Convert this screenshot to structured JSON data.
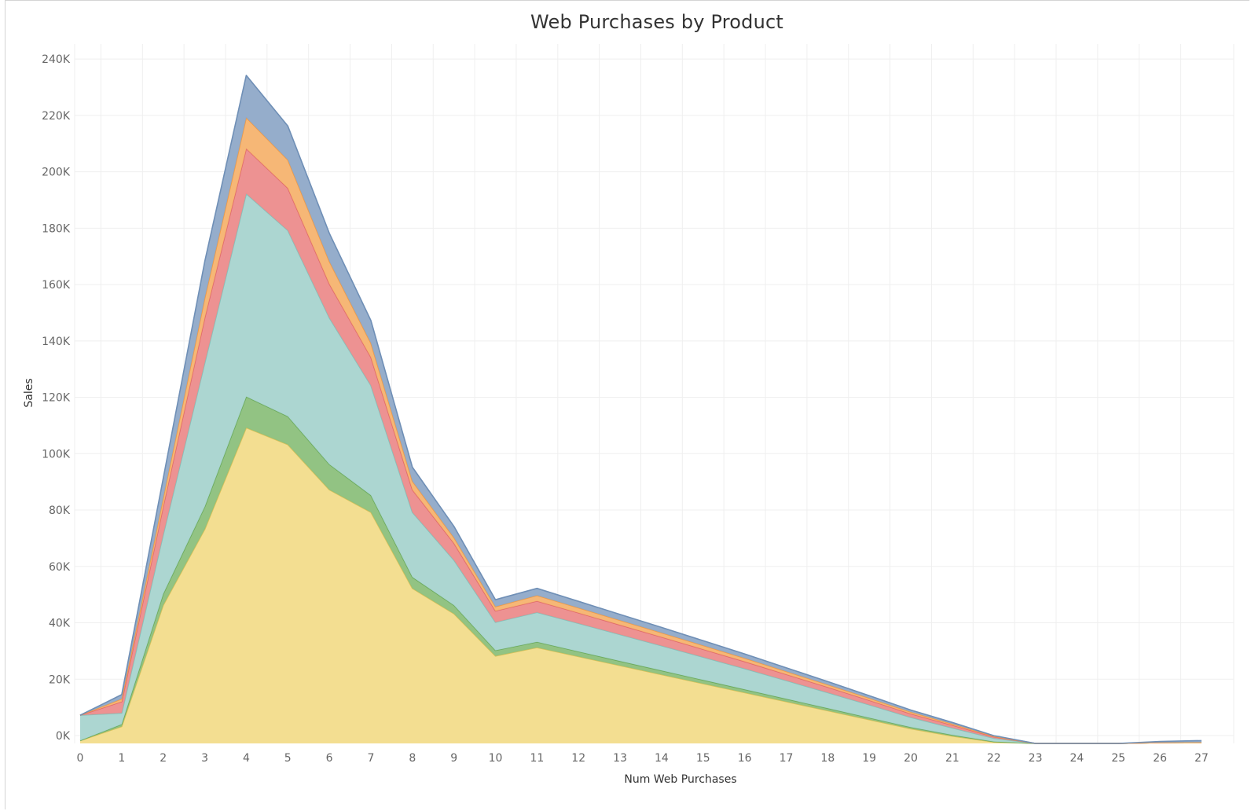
{
  "chart_data": {
    "type": "area",
    "stacked": true,
    "title": "Web Purchases by Product",
    "xlabel": "Num Web Purchases",
    "ylabel": "Sales",
    "x": [
      0,
      1,
      2,
      3,
      4,
      5,
      6,
      7,
      8,
      9,
      10,
      11,
      12,
      13,
      14,
      15,
      16,
      17,
      18,
      19,
      20,
      21,
      22,
      23,
      24,
      25,
      26,
      27
    ],
    "x_tick_labels": [
      "0",
      "1",
      "2",
      "3",
      "4",
      "5",
      "6",
      "7",
      "8",
      "9",
      "10",
      "11",
      "12",
      "13",
      "14",
      "15",
      "16",
      "17",
      "18",
      "19",
      "20",
      "21",
      "22",
      "23",
      "24",
      "25",
      "26",
      "27"
    ],
    "ylim": [
      0,
      245000
    ],
    "y_ticks": [
      0,
      20000,
      40000,
      60000,
      80000,
      100000,
      120000,
      140000,
      160000,
      180000,
      200000,
      220000,
      240000
    ],
    "y_tick_labels": [
      "0K",
      "20K",
      "40K",
      "60K",
      "80K",
      "100K",
      "120K",
      "140K",
      "160K",
      "180K",
      "200K",
      "220K",
      "240K"
    ],
    "grid": true,
    "series": [
      {
        "color": "#f2dc8b",
        "edge": "#d8c15a",
        "values": [
          1000,
          6000,
          49000,
          76000,
          112000,
          106000,
          90000,
          82000,
          55000,
          46000,
          31000,
          34000,
          30800,
          27600,
          24400,
          21200,
          18000,
          14800,
          11600,
          8400,
          5200,
          2600,
          500,
          0,
          0,
          0,
          300,
          400
        ]
      },
      {
        "color": "#8cc07c",
        "edge": "#6aa95a",
        "values": [
          0,
          800,
          4000,
          8000,
          11000,
          10000,
          9000,
          6000,
          4000,
          3000,
          2000,
          2000,
          1800,
          1600,
          1450,
          1300,
          1150,
          1000,
          850,
          700,
          550,
          400,
          150,
          0,
          0,
          0,
          0,
          0
        ]
      },
      {
        "color": "#a8d4cf",
        "edge": "#86bfb8",
        "values": [
          9000,
          4000,
          21000,
          51000,
          72000,
          66000,
          52000,
          39000,
          23000,
          16000,
          10000,
          10500,
          10000,
          9400,
          8800,
          8100,
          7400,
          6500,
          5600,
          4600,
          3500,
          2500,
          1200,
          0,
          0,
          0,
          0,
          0
        ]
      },
      {
        "color": "#ec8c8c",
        "edge": "#e06a6a",
        "values": [
          0,
          4000,
          10000,
          16000,
          16000,
          15000,
          12000,
          10000,
          8000,
          6000,
          4000,
          4000,
          3700,
          3400,
          3100,
          2800,
          2500,
          2200,
          1900,
          1600,
          1300,
          1000,
          500,
          0,
          0,
          0,
          0,
          0
        ]
      },
      {
        "color": "#f6b36f",
        "edge": "#f09a45",
        "values": [
          0,
          1000,
          3000,
          7000,
          11000,
          10000,
          8000,
          5000,
          3000,
          2000,
          1500,
          2000,
          1800,
          1650,
          1500,
          1350,
          1200,
          1050,
          900,
          750,
          600,
          450,
          200,
          0,
          0,
          0,
          0,
          0
        ]
      },
      {
        "color": "#8fa9c8",
        "edge": "#6f8fb6",
        "values": [
          0,
          1500,
          7000,
          13000,
          15000,
          12000,
          10000,
          8000,
          5000,
          4000,
          2500,
          2500,
          2300,
          2100,
          1900,
          1700,
          1500,
          1300,
          1100,
          900,
          700,
          500,
          200,
          0,
          0,
          0,
          400,
          600
        ]
      }
    ]
  }
}
